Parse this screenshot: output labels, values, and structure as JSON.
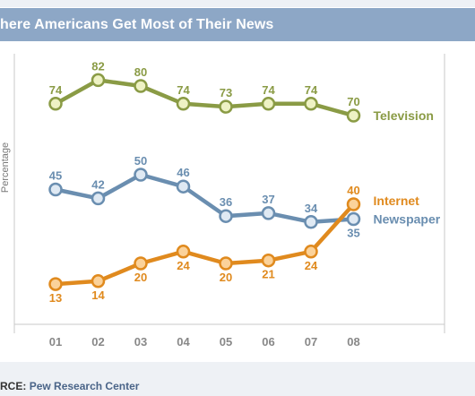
{
  "title": "here Americans Get Most of Their News",
  "source": {
    "prefix": "RCE:",
    "text": "Pew Research Center"
  },
  "chart_data": {
    "type": "line",
    "title": "here Americans Get Most of Their News",
    "xlabel": "",
    "ylabel": "Percentage",
    "x": [
      "01",
      "02",
      "03",
      "04",
      "05",
      "06",
      "07",
      "08"
    ],
    "ylim": [
      0,
      100
    ],
    "grid": false,
    "legend": "inline-right",
    "series": [
      {
        "name": "Television",
        "color": "#8a9b45",
        "marker_fill": "#eef2c4",
        "values": [
          74,
          82,
          80,
          74,
          73,
          74,
          74,
          70
        ]
      },
      {
        "name": "Newspaper",
        "color": "#6a8eb0",
        "marker_fill": "#dfe9f3",
        "values": [
          45,
          42,
          50,
          46,
          36,
          37,
          34,
          35
        ]
      },
      {
        "name": "Internet",
        "color": "#e08a1e",
        "marker_fill": "#fbd29a",
        "values": [
          13,
          14,
          20,
          24,
          20,
          21,
          24,
          40
        ]
      }
    ]
  }
}
